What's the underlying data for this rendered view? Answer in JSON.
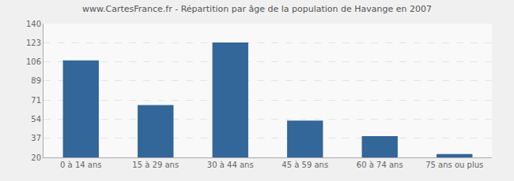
{
  "chart_data": {
    "type": "bar",
    "title": "www.CartesFrance.fr - Répartition par âge de la population de Havange en 2007",
    "categories": [
      "0 à 14 ans",
      "15 à 29 ans",
      "30 à 44 ans",
      "45 à 59 ans",
      "60 à 74 ans",
      "75 ans ou plus"
    ],
    "values": [
      107,
      67,
      123,
      53,
      39,
      23
    ],
    "color": "#336699",
    "ylim": [
      20,
      140
    ],
    "yticks": [
      20,
      37,
      54,
      71,
      89,
      106,
      123,
      140
    ],
    "grid": true
  }
}
